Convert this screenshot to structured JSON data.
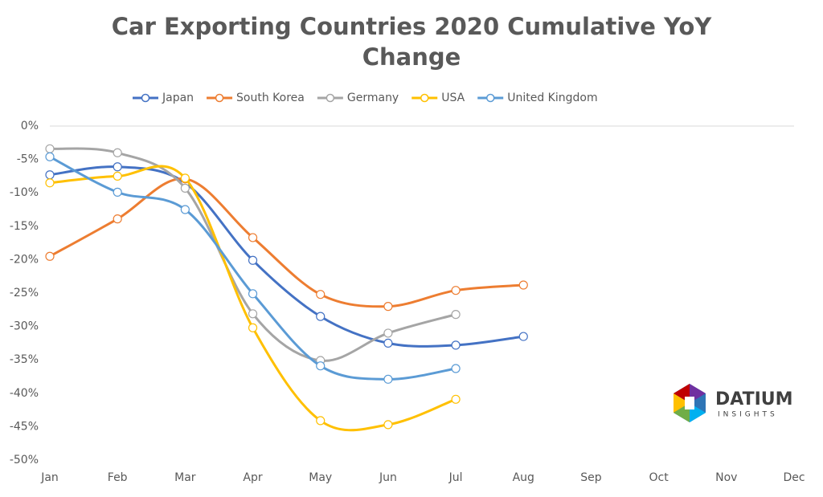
{
  "chart_data": {
    "type": "line",
    "title": "Car Exporting Countries 2020 Cumulative YoY Change",
    "categories": [
      "Jan",
      "Feb",
      "Mar",
      "Apr",
      "May",
      "Jun",
      "Jul",
      "Aug",
      "Sep",
      "Oct",
      "Nov",
      "Dec"
    ],
    "series": [
      {
        "name": "Japan",
        "color": "#4472c4",
        "values": [
          -7.3,
          -6.1,
          -8.5,
          -20.1,
          -28.5,
          -32.5,
          -32.8,
          -31.5,
          null,
          null,
          null,
          null
        ]
      },
      {
        "name": "South Korea",
        "color": "#ed7d31",
        "values": [
          -19.5,
          -13.9,
          -7.9,
          -16.7,
          -25.2,
          -27.0,
          -24.6,
          -23.8,
          null,
          null,
          null,
          null
        ]
      },
      {
        "name": "Germany",
        "color": "#a5a5a5",
        "values": [
          -3.4,
          -4.0,
          -9.3,
          -28.1,
          -35.1,
          -31.0,
          -28.2,
          null,
          null,
          null,
          null,
          null
        ]
      },
      {
        "name": "USA",
        "color": "#ffc000",
        "values": [
          -8.5,
          -7.5,
          -7.8,
          -30.2,
          -44.1,
          -44.7,
          -40.9,
          null,
          null,
          null,
          null,
          null
        ]
      },
      {
        "name": "United Kingdom",
        "color": "#5b9bd5",
        "values": [
          -4.6,
          -9.9,
          -12.5,
          -25.1,
          -35.9,
          -37.9,
          -36.3,
          null,
          null,
          null,
          null,
          null
        ]
      }
    ],
    "ylim": [
      -50,
      0
    ],
    "yticks": [
      {
        "value": 0,
        "label": "0%"
      },
      {
        "value": -5,
        "label": "-5%"
      },
      {
        "value": -10,
        "label": "-10%"
      },
      {
        "value": -15,
        "label": "-15%"
      },
      {
        "value": -20,
        "label": "-20%"
      },
      {
        "value": -25,
        "label": "-25%"
      },
      {
        "value": -30,
        "label": "-30%"
      },
      {
        "value": -35,
        "label": "-35%"
      },
      {
        "value": -40,
        "label": "-40%"
      },
      {
        "value": -45,
        "label": "-45%"
      },
      {
        "value": -50,
        "label": "-50%"
      }
    ],
    "grid": false,
    "smooth": true,
    "legend": "top",
    "logo": {
      "name": "DATIUM",
      "tagline": "INSIGHTS"
    }
  }
}
